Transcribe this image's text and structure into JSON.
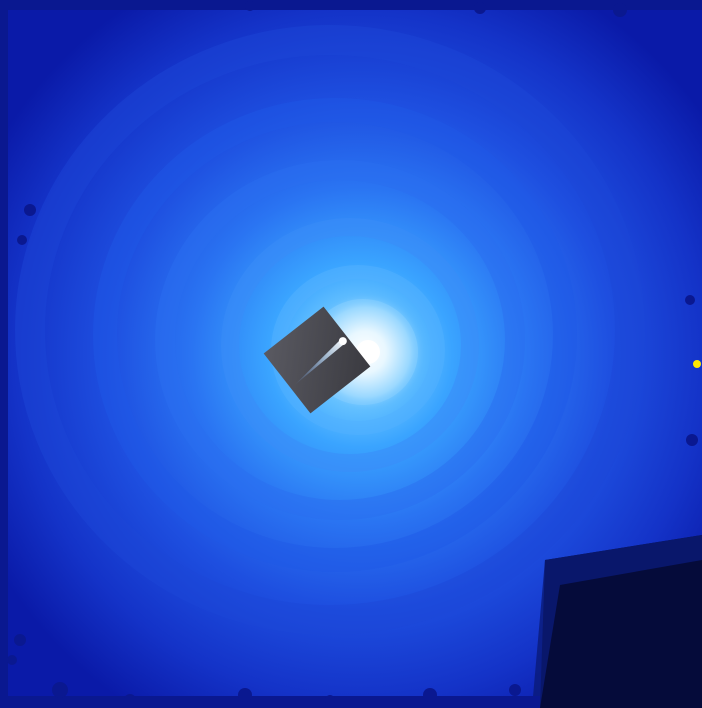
{
  "image": {
    "subject": "comet-coma-false-color-image",
    "colors": {
      "background_deep": "#0a1aa8",
      "background_mid": "#1433c8",
      "ring_outer": "#1e4fe0",
      "ring_mid": "#2a74f2",
      "ring_inner": "#3aa4ff",
      "core_glow": "#bfe8ff",
      "nucleus": "#ffffff",
      "dark_corner": "#050b3a",
      "inset_panel": "#4a4a52",
      "marker_dot": "#ffe800"
    },
    "icons": {
      "inset": "comet-inset-icon",
      "marker": "star-marker-icon"
    }
  }
}
